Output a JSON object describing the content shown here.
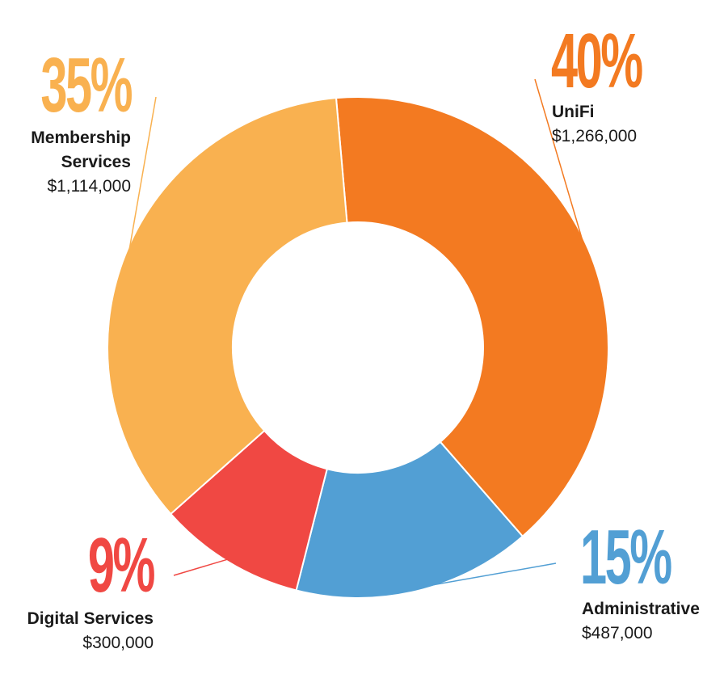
{
  "chart_data": {
    "type": "pie",
    "donut": true,
    "slices": [
      {
        "name": "UniFi",
        "name_lines": [
          "UniFi"
        ],
        "value": 1266000,
        "value_label": "$1,266,000",
        "percent_label": "40%",
        "color": "#f37a21"
      },
      {
        "name": "Administrative",
        "name_lines": [
          "Administrative"
        ],
        "value": 487000,
        "value_label": "$487,000",
        "percent_label": "15%",
        "color": "#529fd4"
      },
      {
        "name": "Digital Services",
        "name_lines": [
          "Digital Services"
        ],
        "value": 300000,
        "value_label": "$300,000",
        "percent_label": "9%",
        "color": "#f04843"
      },
      {
        "name": "Membership Services",
        "name_lines": [
          "Membership",
          "Services"
        ],
        "value": 1114000,
        "value_label": "$1,114,000",
        "percent_label": "35%",
        "color": "#f9b150"
      }
    ]
  }
}
